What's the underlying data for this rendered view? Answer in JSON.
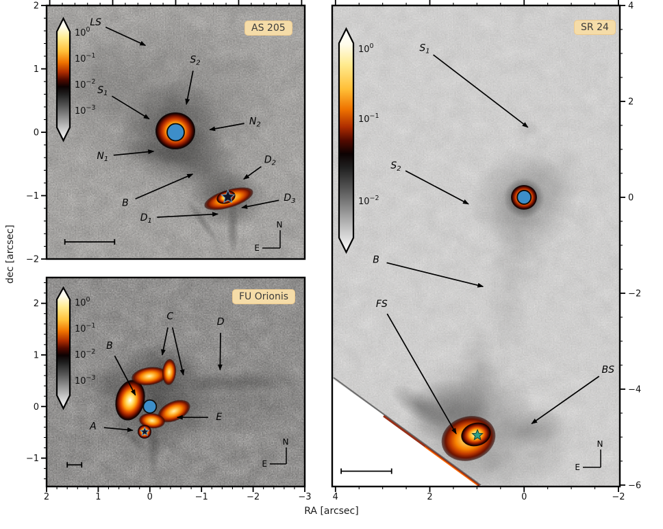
{
  "figure": {
    "xlabel": "RA [arcsec]",
    "ylabel": "dec [arcsec]",
    "background": "#ffffff",
    "badge_color": "#f5dca8",
    "badge_text_color": "#3a3a3a",
    "accent_blue": "#3d8ec9",
    "accent_teal": "#2fa083"
  },
  "chart_data": [
    {
      "id": "as205",
      "type": "heatmap",
      "title": "AS 205",
      "xlim": [
        2.05,
        -2.05
      ],
      "ylim": [
        2,
        -2
      ],
      "xticks": {
        "values": [
          2,
          1,
          0,
          -1,
          -2
        ],
        "labels": []
      },
      "yticks": {
        "values": [
          2,
          1,
          0,
          -1,
          -2
        ],
        "labels": [
          "2",
          "1",
          "0",
          "-1",
          "-2"
        ],
        "side": "left"
      },
      "colorbar": {
        "scale": "log",
        "tick_exponents": [
          "0",
          "-1",
          "-2",
          "-3"
        ]
      },
      "sources": [
        {
          "x": 0,
          "y": 0,
          "marker": "blue-circle"
        },
        {
          "x": -0.83,
          "y": -1.02,
          "marker": "dark-star"
        }
      ],
      "annotations": [
        {
          "label": "LS",
          "tx": 1.27,
          "ty": 1.73,
          "tips": [
            [
              0.48,
              1.37
            ]
          ]
        },
        {
          "label": "S_2",
          "tx": -0.31,
          "ty": 1.14,
          "tips": [
            [
              -0.17,
              0.44
            ]
          ]
        },
        {
          "label": "S_1",
          "tx": 1.16,
          "ty": 0.66,
          "tips": [
            [
              0.42,
              0.21
            ]
          ]
        },
        {
          "label": "N_2",
          "tx": -1.26,
          "ty": 0.17,
          "tips": [
            [
              -0.54,
              0.04
            ]
          ]
        },
        {
          "label": "N_1",
          "tx": 1.16,
          "ty": -0.38,
          "tips": [
            [
              0.35,
              -0.3
            ]
          ]
        },
        {
          "label": "B",
          "tx": 0.8,
          "ty": -1.12,
          "tips": [
            [
              -0.27,
              -0.66
            ]
          ]
        },
        {
          "label": "D_2",
          "tx": -1.5,
          "ty": -0.44,
          "tips": [
            [
              -1.08,
              -0.74
            ]
          ]
        },
        {
          "label": "D_3",
          "tx": -1.81,
          "ty": -1.04,
          "tips": [
            [
              -1.05,
              -1.19
            ]
          ]
        },
        {
          "label": "D_1",
          "tx": 0.47,
          "ty": -1.35,
          "tips": [
            [
              -0.67,
              -1.29
            ]
          ]
        }
      ],
      "scalebar": {
        "x1": 1.76,
        "x2": 0.97,
        "y": -1.73
      },
      "compass": {
        "north": "N",
        "east": "E"
      }
    },
    {
      "id": "fuori",
      "type": "heatmap",
      "title": "FU Orionis",
      "xlim": [
        2.0,
        -3.0
      ],
      "ylim": [
        2.5,
        -1.55
      ],
      "xticks": {
        "values": [
          2,
          1,
          0,
          -1,
          -2,
          -3
        ],
        "labels": [
          "2",
          "1",
          "0",
          "-1",
          "-2",
          "-3"
        ]
      },
      "yticks": {
        "values": [
          2,
          1,
          0,
          -1
        ],
        "labels": [
          "2",
          "1",
          "0",
          "-1"
        ],
        "side": "left"
      },
      "colorbar": {
        "scale": "log",
        "tick_exponents": [
          "0",
          "-1",
          "-2",
          "-3"
        ]
      },
      "sources": [
        {
          "x": 0,
          "y": 0,
          "marker": "blue-circle"
        },
        {
          "x": 0.1,
          "y": -0.49,
          "marker": "dark-star"
        }
      ],
      "annotations": [
        {
          "label": "C",
          "tx": -0.39,
          "ty": 1.74,
          "tips": [
            [
              -0.24,
              1.0
            ],
            [
              -0.65,
              0.61
            ]
          ]
        },
        {
          "label": "D",
          "tx": -1.37,
          "ty": 1.64,
          "tips": [
            [
              -1.36,
              0.71
            ]
          ]
        },
        {
          "label": "B",
          "tx": 0.78,
          "ty": 1.17,
          "tips": [
            [
              0.28,
              0.22
            ]
          ]
        },
        {
          "label": "E",
          "tx": -1.34,
          "ty": -0.21,
          "tips": [
            [
              -0.53,
              -0.21
            ]
          ]
        },
        {
          "label": "A",
          "tx": 1.1,
          "ty": -0.39,
          "tips": [
            [
              0.33,
              -0.46
            ]
          ]
        }
      ],
      "scalebar": {
        "x1": 1.6,
        "x2": 1.32,
        "y": -1.13
      },
      "compass": {
        "north": "N",
        "east": "E"
      }
    },
    {
      "id": "sr24",
      "type": "heatmap",
      "title": "SR 24",
      "xlim": [
        4.07,
        -2.03
      ],
      "ylim": [
        4,
        -6.03
      ],
      "xticks": {
        "values": [
          4,
          2,
          0,
          -2
        ],
        "labels": [
          "4",
          "2",
          "0",
          "-2"
        ]
      },
      "yticks": {
        "values": [
          4,
          2,
          0,
          -2,
          -4,
          -6
        ],
        "labels": [
          "4",
          "2",
          "0",
          "-2",
          "-4",
          "-6"
        ],
        "side": "right"
      },
      "colorbar": {
        "scale": "log",
        "tick_exponents": [
          "0",
          "-1",
          "-2"
        ]
      },
      "sources": [
        {
          "x": 0,
          "y": 0,
          "marker": "blue-circle"
        },
        {
          "x": 0.99,
          "y": -4.96,
          "marker": "teal-star"
        }
      ],
      "annotations": [
        {
          "label": "S_1",
          "tx": 2.11,
          "ty": 3.11,
          "tips": [
            [
              -0.08,
              1.46
            ]
          ]
        },
        {
          "label": "S_2",
          "tx": 2.72,
          "ty": 0.66,
          "tips": [
            [
              1.18,
              -0.14
            ]
          ]
        },
        {
          "label": "B",
          "tx": 3.14,
          "ty": -1.31,
          "tips": [
            [
              0.87,
              -1.86
            ]
          ]
        },
        {
          "label": "FS",
          "tx": 3.02,
          "ty": -2.23,
          "tips": [
            [
              1.44,
              -4.93
            ]
          ]
        },
        {
          "label": "BS",
          "tx": -1.78,
          "ty": -3.6,
          "tips": [
            [
              -0.16,
              -4.72
            ]
          ]
        }
      ],
      "scalebar": {
        "x1": 3.88,
        "x2": 2.81,
        "y": -5.71
      },
      "compass": {
        "north": "N",
        "east": "E"
      }
    }
  ]
}
